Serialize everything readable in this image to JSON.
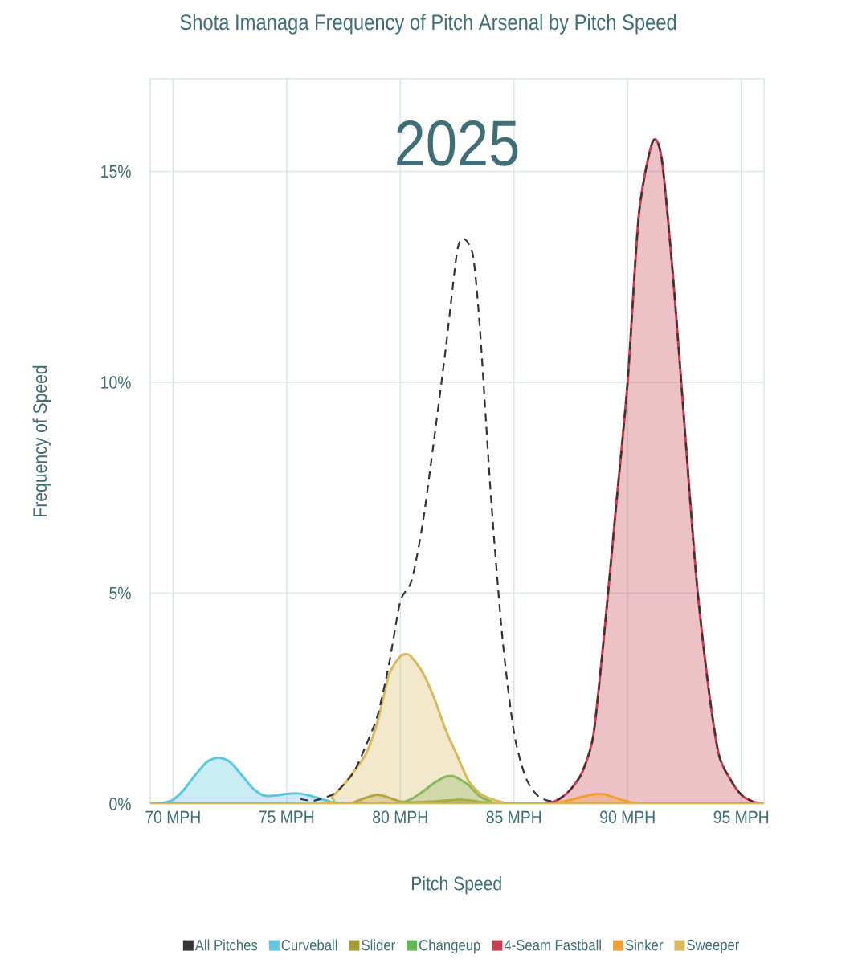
{
  "chart_data": {
    "type": "area",
    "title": "Shota Imanaga Frequency of Pitch Arsenal by Pitch Speed",
    "xlabel": "Pitch Speed",
    "ylabel": "Frequency of Speed",
    "annotations": [
      "2025"
    ],
    "xlim": [
      69,
      96
    ],
    "ylim": [
      0,
      17.2
    ],
    "xticks": [
      {
        "value": 70,
        "label": "70 MPH"
      },
      {
        "value": 75,
        "label": "75 MPH"
      },
      {
        "value": 80,
        "label": "80 MPH"
      },
      {
        "value": 85,
        "label": "85 MPH"
      },
      {
        "value": 90,
        "label": "90 MPH"
      },
      {
        "value": 95,
        "label": "95 MPH"
      }
    ],
    "yticks": [
      {
        "value": 0,
        "label": "0%"
      },
      {
        "value": 5,
        "label": "5%"
      },
      {
        "value": 10,
        "label": "10%"
      },
      {
        "value": 15,
        "label": "15%"
      }
    ],
    "grid": true,
    "legend": "bottom",
    "series": [
      {
        "name": "All Pitches",
        "type": "line",
        "line_style": "dashed",
        "color": "#333333",
        "x": [
          75.6,
          76.2,
          77,
          77.5,
          78,
          78.5,
          79,
          79.5,
          80,
          80.5,
          81,
          81.5,
          82,
          82.5,
          82.8,
          83.2,
          83.5,
          84,
          84.5,
          85,
          85.5,
          86,
          86.5,
          87,
          87.5,
          88,
          88.5,
          89,
          89.5,
          90,
          90.5,
          91.1,
          91.5,
          92,
          92.5,
          93,
          93.5,
          94,
          94.5,
          95,
          95.5
        ],
        "values": [
          0.12,
          0.08,
          0.22,
          0.45,
          0.8,
          1.4,
          2.1,
          3.3,
          4.8,
          5.3,
          6.7,
          8.7,
          10.8,
          13.1,
          13.4,
          13.0,
          11.3,
          7.2,
          3.9,
          1.7,
          0.65,
          0.22,
          0.08,
          0.12,
          0.35,
          0.75,
          1.65,
          4.2,
          7.1,
          10,
          14,
          15.7,
          15.3,
          12.5,
          9,
          5.5,
          3,
          1.2,
          0.6,
          0.22,
          0.06
        ]
      },
      {
        "name": "Curveball",
        "color": "#5bc8e0",
        "x": [
          69,
          69.5,
          70,
          70.5,
          71,
          71.5,
          72,
          72.5,
          73,
          73.5,
          74,
          74.5,
          75,
          75.5,
          76,
          76.5,
          77,
          77.5,
          78,
          96
        ],
        "values": [
          0,
          0.02,
          0.1,
          0.35,
          0.7,
          1.0,
          1.1,
          1.0,
          0.7,
          0.38,
          0.2,
          0.2,
          0.24,
          0.25,
          0.2,
          0.12,
          0.05,
          0.01,
          0,
          0
        ]
      },
      {
        "name": "Slider",
        "color": "#a39d36",
        "x": [
          69,
          77.5,
          78,
          78.5,
          79,
          79.5,
          80,
          80.5,
          81,
          81.5,
          82,
          82.5,
          83,
          83.5,
          84,
          84.5,
          96
        ],
        "values": [
          0,
          0,
          0.05,
          0.15,
          0.22,
          0.15,
          0.06,
          0.04,
          0.05,
          0.06,
          0.08,
          0.1,
          0.09,
          0.05,
          0.02,
          0,
          0
        ]
      },
      {
        "name": "Changeup",
        "color": "#62b95a",
        "x": [
          69,
          79.5,
          80,
          80.5,
          81,
          81.5,
          82,
          82.3,
          82.5,
          83,
          83.5,
          84,
          84.5,
          96
        ],
        "values": [
          0,
          0,
          0.03,
          0.12,
          0.3,
          0.5,
          0.65,
          0.66,
          0.62,
          0.45,
          0.18,
          0.06,
          0,
          0
        ]
      },
      {
        "name": "4-Seam Fastball",
        "color": "#c4404f",
        "x": [
          69,
          86,
          86.5,
          87,
          87.5,
          88,
          88.5,
          89,
          89.5,
          90,
          90.5,
          91.1,
          91.5,
          92,
          92.5,
          93,
          93.5,
          94,
          94.5,
          95,
          95.5,
          96
        ],
        "values": [
          0,
          0,
          0.02,
          0.12,
          0.35,
          0.75,
          1.65,
          4.2,
          7.1,
          10,
          14,
          15.7,
          15.3,
          12.5,
          9,
          5.5,
          3,
          1.2,
          0.6,
          0.22,
          0.06,
          0
        ]
      },
      {
        "name": "Sinker",
        "color": "#f0a030",
        "x": [
          69,
          86.5,
          87,
          87.5,
          88,
          88.5,
          88.8,
          89,
          89.5,
          90,
          90.5,
          91,
          96
        ],
        "values": [
          0,
          0,
          0.04,
          0.1,
          0.17,
          0.23,
          0.24,
          0.23,
          0.14,
          0.06,
          0.01,
          0,
          0
        ]
      },
      {
        "name": "Sweeper",
        "color": "#d8b95c",
        "x": [
          69,
          76.5,
          77,
          77.5,
          78,
          78.5,
          79,
          79.5,
          80,
          80.3,
          80.5,
          81,
          81.5,
          82,
          82.5,
          83,
          83.5,
          84,
          84.5,
          85,
          96
        ],
        "values": [
          0,
          0.02,
          0.18,
          0.45,
          0.8,
          1.2,
          1.95,
          3.05,
          3.5,
          3.55,
          3.48,
          3.1,
          2.5,
          1.75,
          1.15,
          0.55,
          0.25,
          0.12,
          0.04,
          0,
          0
        ]
      }
    ]
  }
}
